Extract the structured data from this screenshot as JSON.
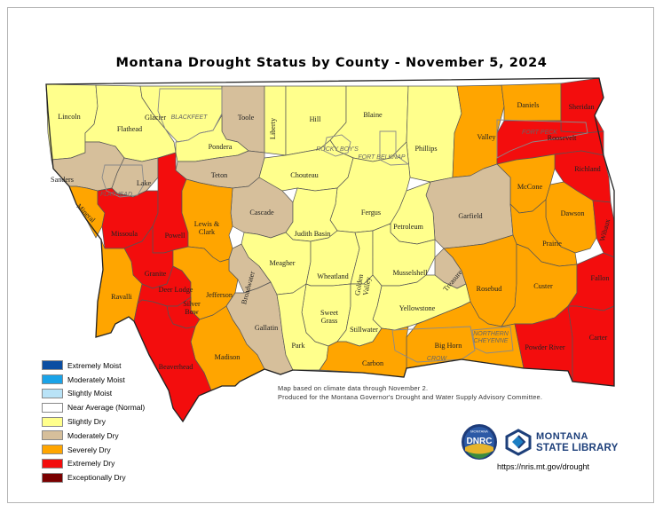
{
  "title": "Montana Drought Status by County - November 5, 2024",
  "legend": [
    {
      "label": "Extremely Moist",
      "color": "#0b4ea2"
    },
    {
      "label": "Moderately Moist",
      "color": "#1aa3e8"
    },
    {
      "label": "Slightly Moist",
      "color": "#b9e3f7"
    },
    {
      "label": "Near Average (Normal)",
      "color": "#ffffff"
    },
    {
      "label": "Slightly Dry",
      "color": "#ffff8c"
    },
    {
      "label": "Moderately Dry",
      "color": "#d6bf9b"
    },
    {
      "label": "Severely Dry",
      "color": "#ffa500"
    },
    {
      "label": "Extremely Dry",
      "color": "#f30d0d"
    },
    {
      "label": "Exceptionally Dry",
      "color": "#7a0000"
    }
  ],
  "notes": {
    "line1": "Map based on climate data through November 2.",
    "line2": "Produced for the Montana Governor's Drought and Water Supply Advisory Committee."
  },
  "logos": {
    "dnrc": "DNRC",
    "dnrc_top": "MONTANA",
    "state_library_line1": "MONTANA",
    "state_library_line2": "STATE LIBRARY"
  },
  "url": "https://nris.mt.gov/drought",
  "reservations": [
    "BLACKFEET",
    "ROCKY BOY'S",
    "FORT BELKNAP",
    "FORT PECK",
    "FLATHEAD",
    "NORTHERN CHEYENNE",
    "CROW"
  ],
  "counties": [
    {
      "name": "Lincoln",
      "status": "Slightly Dry"
    },
    {
      "name": "Flathead",
      "status": "Slightly Dry"
    },
    {
      "name": "Glacier",
      "status": "Slightly Dry"
    },
    {
      "name": "Toole",
      "status": "Moderately Dry"
    },
    {
      "name": "Liberty",
      "status": "Slightly Dry"
    },
    {
      "name": "Hill",
      "status": "Slightly Dry"
    },
    {
      "name": "Blaine",
      "status": "Slightly Dry"
    },
    {
      "name": "Phillips",
      "status": "Slightly Dry"
    },
    {
      "name": "Valley",
      "status": "Severely Dry"
    },
    {
      "name": "Daniels",
      "status": "Severely Dry"
    },
    {
      "name": "Sheridan",
      "status": "Extremely Dry"
    },
    {
      "name": "Roosevelt",
      "status": "Extremely Dry"
    },
    {
      "name": "Pondera",
      "status": "Slightly Dry"
    },
    {
      "name": "Sanders",
      "status": "Moderately Dry"
    },
    {
      "name": "Lake",
      "status": "Moderately Dry"
    },
    {
      "name": "Teton",
      "status": "Moderately Dry"
    },
    {
      "name": "Chouteau",
      "status": "Slightly Dry"
    },
    {
      "name": "Richland",
      "status": "Extremely Dry"
    },
    {
      "name": "McCone",
      "status": "Severely Dry"
    },
    {
      "name": "Mineral",
      "status": "Severely Dry"
    },
    {
      "name": "Cascade",
      "status": "Moderately Dry"
    },
    {
      "name": "Fergus",
      "status": "Slightly Dry"
    },
    {
      "name": "Garfield",
      "status": "Moderately Dry"
    },
    {
      "name": "Dawson",
      "status": "Severely Dry"
    },
    {
      "name": "Wibaux",
      "status": "Extremely Dry"
    },
    {
      "name": "Missoula",
      "status": "Extremely Dry"
    },
    {
      "name": "Powell",
      "status": "Extremely Dry"
    },
    {
      "name": "Lewis & Clark",
      "status": "Severely Dry"
    },
    {
      "name": "Judith Basin",
      "status": "Slightly Dry"
    },
    {
      "name": "Petroleum",
      "status": "Slightly Dry"
    },
    {
      "name": "Prairie",
      "status": "Severely Dry"
    },
    {
      "name": "Meagher",
      "status": "Slightly Dry"
    },
    {
      "name": "Granite",
      "status": "Extremely Dry"
    },
    {
      "name": "Broadwater",
      "status": "Moderately Dry"
    },
    {
      "name": "Wheatland",
      "status": "Slightly Dry"
    },
    {
      "name": "Golden Valley",
      "status": "Slightly Dry"
    },
    {
      "name": "Musselshell",
      "status": "Slightly Dry"
    },
    {
      "name": "Treasure",
      "status": "Moderately Dry"
    },
    {
      "name": "Rosebud",
      "status": "Severely Dry"
    },
    {
      "name": "Custer",
      "status": "Severely Dry"
    },
    {
      "name": "Fallon",
      "status": "Extremely Dry"
    },
    {
      "name": "Ravalli",
      "status": "Severely Dry"
    },
    {
      "name": "Deer Lodge",
      "status": "Extremely Dry"
    },
    {
      "name": "Jefferson",
      "status": "Severely Dry"
    },
    {
      "name": "Silver Bow",
      "status": "Extremely Dry"
    },
    {
      "name": "Sweet Grass",
      "status": "Slightly Dry"
    },
    {
      "name": "Yellowstone",
      "status": "Slightly Dry"
    },
    {
      "name": "Gallatin",
      "status": "Moderately Dry"
    },
    {
      "name": "Stillwater",
      "status": "Slightly Dry"
    },
    {
      "name": "Big Horn",
      "status": "Severely Dry"
    },
    {
      "name": "Park",
      "status": "Slightly Dry"
    },
    {
      "name": "Carbon",
      "status": "Severely Dry"
    },
    {
      "name": "Powder River",
      "status": "Extremely Dry"
    },
    {
      "name": "Carter",
      "status": "Extremely Dry"
    },
    {
      "name": "Madison",
      "status": "Severely Dry"
    },
    {
      "name": "Beaverhead",
      "status": "Extremely Dry"
    }
  ]
}
